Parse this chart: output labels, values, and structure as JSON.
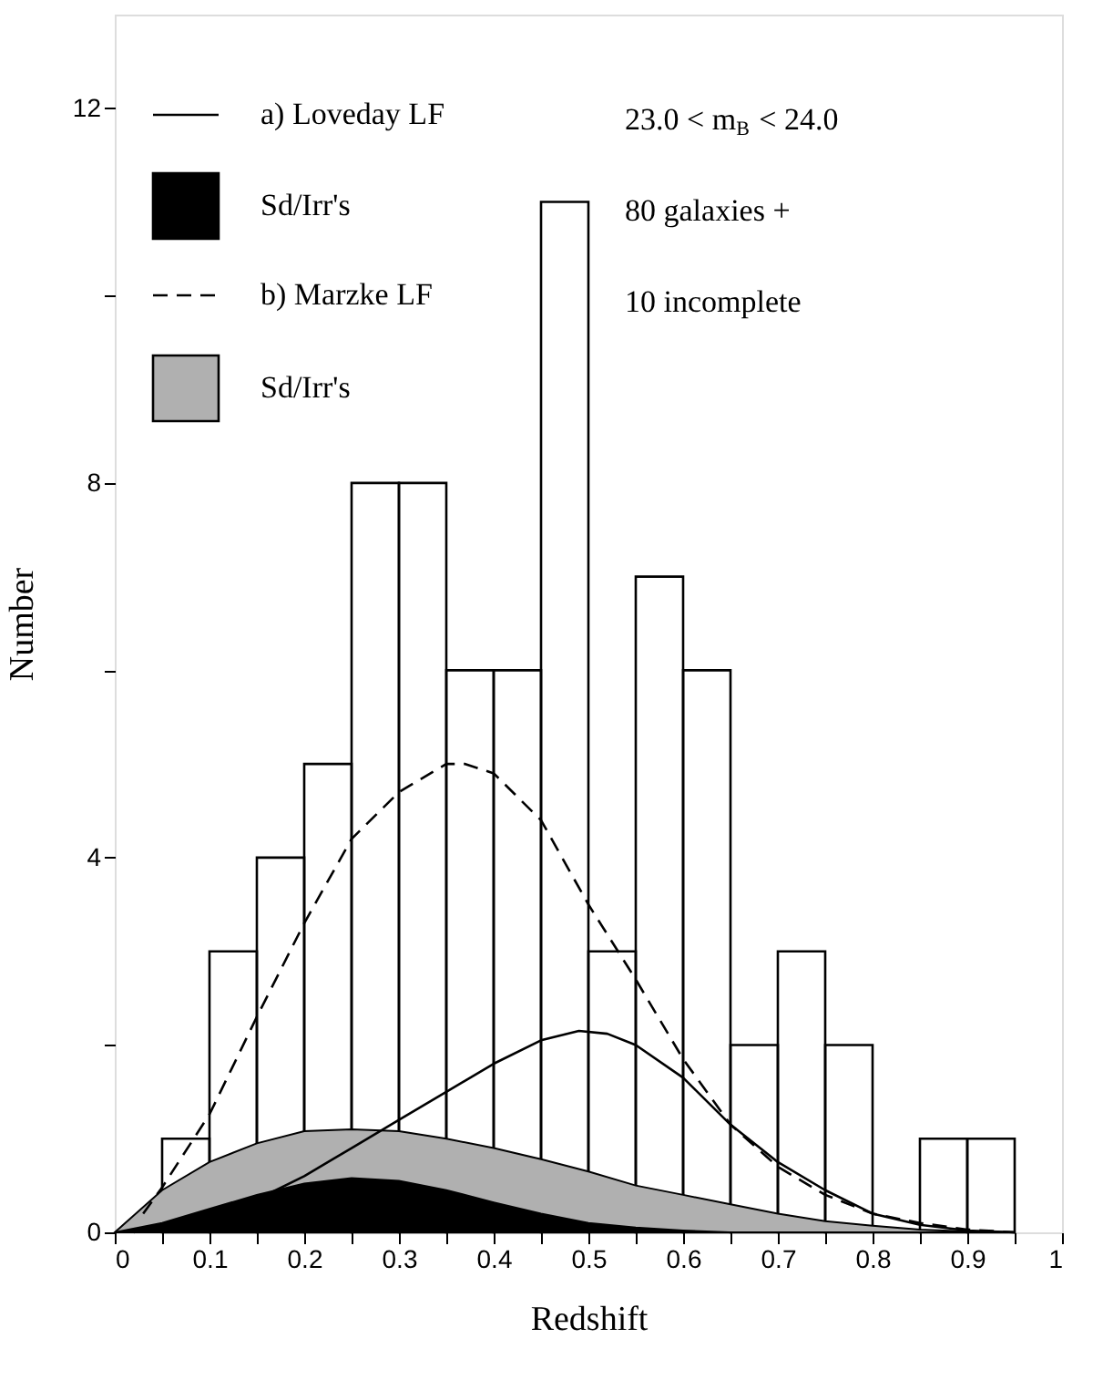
{
  "chart_data": {
    "type": "histogram",
    "xlabel": "Redshift",
    "ylabel": "Number",
    "color": "#000000",
    "bins": [
      0.05,
      0.1,
      0.15,
      0.2,
      0.25,
      0.3,
      0.35,
      0.4,
      0.45,
      0.5,
      0.55,
      0.6,
      0.65,
      0.7,
      0.75,
      0.8,
      0.85,
      0.9,
      0.95
    ],
    "values": [
      1,
      3,
      4,
      5,
      8,
      8,
      6,
      6,
      11,
      3,
      7,
      6,
      2,
      3,
      2,
      0,
      1,
      1
    ],
    "series": [
      {
        "name": "a) Loveday LF",
        "type": "line",
        "line_style": "solid",
        "color": "#000000",
        "x": [
          0.02,
          0.05,
          0.1,
          0.15,
          0.2,
          0.25,
          0.3,
          0.35,
          0.4,
          0.45,
          0.49,
          0.52,
          0.55,
          0.6,
          0.65,
          0.7,
          0.75,
          0.8,
          0.85,
          0.9,
          0.95
        ],
        "values": [
          0,
          0.08,
          0.2,
          0.35,
          0.6,
          0.9,
          1.2,
          1.5,
          1.8,
          2.05,
          2.15,
          2.12,
          2.0,
          1.65,
          1.15,
          0.75,
          0.45,
          0.2,
          0.08,
          0.02,
          0
        ]
      },
      {
        "name": "Sd/Irr's",
        "type": "area",
        "color": "#000000",
        "x": [
          0,
          0.05,
          0.1,
          0.15,
          0.2,
          0.25,
          0.3,
          0.35,
          0.4,
          0.45,
          0.5,
          0.55,
          0.6,
          0.65
        ],
        "values": [
          0,
          0.1,
          0.25,
          0.4,
          0.52,
          0.58,
          0.55,
          0.45,
          0.32,
          0.2,
          0.1,
          0.05,
          0.02,
          0
        ]
      },
      {
        "name": "b) Marzke LF",
        "type": "line",
        "line_style": "dashed",
        "color": "#000000",
        "x": [
          0.03,
          0.05,
          0.1,
          0.15,
          0.2,
          0.25,
          0.3,
          0.35,
          0.37,
          0.4,
          0.45,
          0.5,
          0.55,
          0.6,
          0.65,
          0.7,
          0.75,
          0.8,
          0.85,
          0.9,
          0.95
        ],
        "values": [
          0.2,
          0.48,
          1.26,
          2.3,
          3.3,
          4.2,
          4.7,
          5.0,
          5.0,
          4.9,
          4.4,
          3.5,
          2.7,
          1.85,
          1.15,
          0.7,
          0.4,
          0.2,
          0.1,
          0.03,
          0
        ]
      },
      {
        "name": "Sd/Irr's",
        "type": "area",
        "color": "#b0b0b0",
        "x": [
          0,
          0.05,
          0.1,
          0.15,
          0.2,
          0.25,
          0.3,
          0.35,
          0.4,
          0.45,
          0.5,
          0.55,
          0.6,
          0.65,
          0.7,
          0.75,
          0.8,
          0.85,
          0.9,
          0.95
        ],
        "values": [
          0,
          0.45,
          0.75,
          0.95,
          1.08,
          1.1,
          1.08,
          1.0,
          0.9,
          0.78,
          0.65,
          0.5,
          0.4,
          0.3,
          0.2,
          0.12,
          0.07,
          0.03,
          0.01,
          0
        ]
      }
    ],
    "annotations": [
      "23.0 < m$_{B}$ < 24.0",
      "80 galaxies +",
      "10 incomplete"
    ],
    "legend": "top left",
    "grid": false,
    "xlim": [
      0,
      1
    ],
    "xticks": [
      0,
      {
        "value": 0.05,
        "label": null
      },
      0.1,
      {
        "value": 0.15,
        "label": null
      },
      0.2,
      {
        "value": 0.25,
        "label": null
      },
      0.3,
      {
        "value": 0.35,
        "label": null
      },
      0.4,
      {
        "value": 0.45,
        "label": null
      },
      0.5,
      {
        "value": 0.55,
        "label": null
      },
      0.6,
      {
        "value": 0.65,
        "label": null
      },
      0.7,
      {
        "value": 0.75,
        "label": null
      },
      0.8,
      {
        "value": 0.85,
        "label": null
      },
      0.9,
      {
        "value": 0.95,
        "label": null
      },
      1
    ],
    "ylim": [
      0,
      13
    ],
    "yticks": [
      0,
      {
        "value": 2,
        "label": null
      },
      4,
      {
        "value": 6,
        "label": null
      },
      8,
      {
        "value": 10,
        "label": null
      },
      12
    ]
  }
}
